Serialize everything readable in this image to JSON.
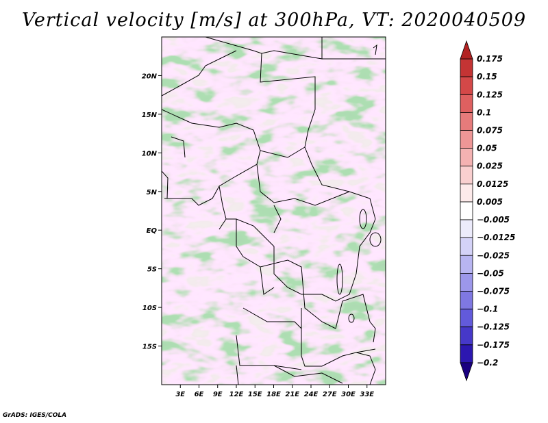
{
  "chart_data": {
    "type": "heatmap",
    "title": "Vertical velocity [m/s] at 300hPa, VT: 2020040509",
    "variable": "Vertical velocity",
    "units": "m/s",
    "level": "300hPa",
    "valid_time": "2020040509",
    "x_range": [
      0,
      36
    ],
    "y_range": [
      -20,
      25
    ],
    "x_ticks": [
      3,
      6,
      9,
      12,
      15,
      18,
      21,
      24,
      27,
      30,
      33
    ],
    "x_tick_labels": [
      "3E",
      "6E",
      "9E",
      "12E",
      "15E",
      "18E",
      "21E",
      "24E",
      "27E",
      "30E",
      "33E"
    ],
    "y_ticks": [
      20,
      15,
      10,
      5,
      0,
      -5,
      -10,
      -15
    ],
    "y_tick_labels": [
      "20N",
      "15N",
      "10N",
      "5N",
      "EQ",
      "5S",
      "10S",
      "15S"
    ],
    "colorbar": {
      "levels": [
        0.175,
        0.15,
        0.125,
        0.1,
        0.075,
        0.05,
        0.025,
        0.0125,
        0.005,
        -0.005,
        -0.0125,
        -0.025,
        -0.05,
        -0.075,
        -0.1,
        -0.125,
        -0.175,
        -0.2
      ],
      "labels": [
        "0.175",
        "0.15",
        "0.125",
        "0.1",
        "0.075",
        "0.05",
        "0.025",
        "0.0125",
        "0.005",
        "−0.005",
        "−0.0125",
        "−0.025",
        "−0.05",
        "−0.075",
        "−0.1",
        "−0.125",
        "−0.175",
        "−0.2"
      ],
      "colors": [
        "#b22222",
        "#c43434",
        "#d44848",
        "#de6060",
        "#e67b7b",
        "#ee9696",
        "#f4b2b2",
        "#f9cfcf",
        "#fdeaea",
        "#ffffff",
        "#ecebfb",
        "#d4d2f7",
        "#b8b5f1",
        "#9c97ea",
        "#7f78e2",
        "#625adb",
        "#4638c9",
        "#2c17b0",
        "#1a0080"
      ]
    }
  },
  "credit": "GrADS: IGES/COLA"
}
